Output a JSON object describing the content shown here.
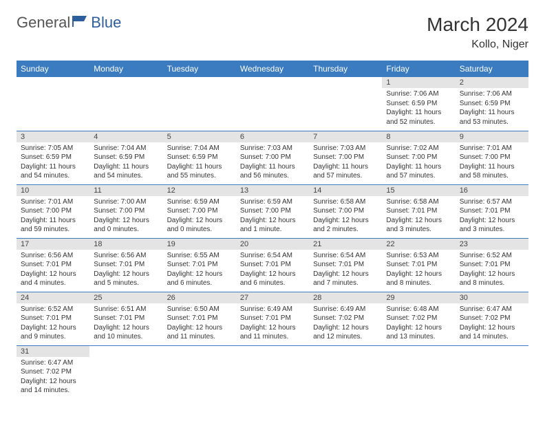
{
  "brand": {
    "text1": "General",
    "text2": "Blue"
  },
  "title": "March 2024",
  "location": "Kollo, Niger",
  "colors": {
    "header_bg": "#3b7bbf",
    "header_text": "#ffffff",
    "daynum_bg": "#e4e4e4",
    "row_border": "#3b7bbf",
    "brand_gray": "#555555",
    "brand_blue": "#2d5f9e"
  },
  "daysOfWeek": [
    "Sunday",
    "Monday",
    "Tuesday",
    "Wednesday",
    "Thursday",
    "Friday",
    "Saturday"
  ],
  "weeks": [
    [
      {
        "n": "",
        "sr": "",
        "ss": "",
        "dl": ""
      },
      {
        "n": "",
        "sr": "",
        "ss": "",
        "dl": ""
      },
      {
        "n": "",
        "sr": "",
        "ss": "",
        "dl": ""
      },
      {
        "n": "",
        "sr": "",
        "ss": "",
        "dl": ""
      },
      {
        "n": "",
        "sr": "",
        "ss": "",
        "dl": ""
      },
      {
        "n": "1",
        "sr": "Sunrise: 7:06 AM",
        "ss": "Sunset: 6:59 PM",
        "dl": "Daylight: 11 hours and 52 minutes."
      },
      {
        "n": "2",
        "sr": "Sunrise: 7:06 AM",
        "ss": "Sunset: 6:59 PM",
        "dl": "Daylight: 11 hours and 53 minutes."
      }
    ],
    [
      {
        "n": "3",
        "sr": "Sunrise: 7:05 AM",
        "ss": "Sunset: 6:59 PM",
        "dl": "Daylight: 11 hours and 54 minutes."
      },
      {
        "n": "4",
        "sr": "Sunrise: 7:04 AM",
        "ss": "Sunset: 6:59 PM",
        "dl": "Daylight: 11 hours and 54 minutes."
      },
      {
        "n": "5",
        "sr": "Sunrise: 7:04 AM",
        "ss": "Sunset: 6:59 PM",
        "dl": "Daylight: 11 hours and 55 minutes."
      },
      {
        "n": "6",
        "sr": "Sunrise: 7:03 AM",
        "ss": "Sunset: 7:00 PM",
        "dl": "Daylight: 11 hours and 56 minutes."
      },
      {
        "n": "7",
        "sr": "Sunrise: 7:03 AM",
        "ss": "Sunset: 7:00 PM",
        "dl": "Daylight: 11 hours and 57 minutes."
      },
      {
        "n": "8",
        "sr": "Sunrise: 7:02 AM",
        "ss": "Sunset: 7:00 PM",
        "dl": "Daylight: 11 hours and 57 minutes."
      },
      {
        "n": "9",
        "sr": "Sunrise: 7:01 AM",
        "ss": "Sunset: 7:00 PM",
        "dl": "Daylight: 11 hours and 58 minutes."
      }
    ],
    [
      {
        "n": "10",
        "sr": "Sunrise: 7:01 AM",
        "ss": "Sunset: 7:00 PM",
        "dl": "Daylight: 11 hours and 59 minutes."
      },
      {
        "n": "11",
        "sr": "Sunrise: 7:00 AM",
        "ss": "Sunset: 7:00 PM",
        "dl": "Daylight: 12 hours and 0 minutes."
      },
      {
        "n": "12",
        "sr": "Sunrise: 6:59 AM",
        "ss": "Sunset: 7:00 PM",
        "dl": "Daylight: 12 hours and 0 minutes."
      },
      {
        "n": "13",
        "sr": "Sunrise: 6:59 AM",
        "ss": "Sunset: 7:00 PM",
        "dl": "Daylight: 12 hours and 1 minute."
      },
      {
        "n": "14",
        "sr": "Sunrise: 6:58 AM",
        "ss": "Sunset: 7:00 PM",
        "dl": "Daylight: 12 hours and 2 minutes."
      },
      {
        "n": "15",
        "sr": "Sunrise: 6:58 AM",
        "ss": "Sunset: 7:01 PM",
        "dl": "Daylight: 12 hours and 3 minutes."
      },
      {
        "n": "16",
        "sr": "Sunrise: 6:57 AM",
        "ss": "Sunset: 7:01 PM",
        "dl": "Daylight: 12 hours and 3 minutes."
      }
    ],
    [
      {
        "n": "17",
        "sr": "Sunrise: 6:56 AM",
        "ss": "Sunset: 7:01 PM",
        "dl": "Daylight: 12 hours and 4 minutes."
      },
      {
        "n": "18",
        "sr": "Sunrise: 6:56 AM",
        "ss": "Sunset: 7:01 PM",
        "dl": "Daylight: 12 hours and 5 minutes."
      },
      {
        "n": "19",
        "sr": "Sunrise: 6:55 AM",
        "ss": "Sunset: 7:01 PM",
        "dl": "Daylight: 12 hours and 6 minutes."
      },
      {
        "n": "20",
        "sr": "Sunrise: 6:54 AM",
        "ss": "Sunset: 7:01 PM",
        "dl": "Daylight: 12 hours and 6 minutes."
      },
      {
        "n": "21",
        "sr": "Sunrise: 6:54 AM",
        "ss": "Sunset: 7:01 PM",
        "dl": "Daylight: 12 hours and 7 minutes."
      },
      {
        "n": "22",
        "sr": "Sunrise: 6:53 AM",
        "ss": "Sunset: 7:01 PM",
        "dl": "Daylight: 12 hours and 8 minutes."
      },
      {
        "n": "23",
        "sr": "Sunrise: 6:52 AM",
        "ss": "Sunset: 7:01 PM",
        "dl": "Daylight: 12 hours and 8 minutes."
      }
    ],
    [
      {
        "n": "24",
        "sr": "Sunrise: 6:52 AM",
        "ss": "Sunset: 7:01 PM",
        "dl": "Daylight: 12 hours and 9 minutes."
      },
      {
        "n": "25",
        "sr": "Sunrise: 6:51 AM",
        "ss": "Sunset: 7:01 PM",
        "dl": "Daylight: 12 hours and 10 minutes."
      },
      {
        "n": "26",
        "sr": "Sunrise: 6:50 AM",
        "ss": "Sunset: 7:01 PM",
        "dl": "Daylight: 12 hours and 11 minutes."
      },
      {
        "n": "27",
        "sr": "Sunrise: 6:49 AM",
        "ss": "Sunset: 7:01 PM",
        "dl": "Daylight: 12 hours and 11 minutes."
      },
      {
        "n": "28",
        "sr": "Sunrise: 6:49 AM",
        "ss": "Sunset: 7:02 PM",
        "dl": "Daylight: 12 hours and 12 minutes."
      },
      {
        "n": "29",
        "sr": "Sunrise: 6:48 AM",
        "ss": "Sunset: 7:02 PM",
        "dl": "Daylight: 12 hours and 13 minutes."
      },
      {
        "n": "30",
        "sr": "Sunrise: 6:47 AM",
        "ss": "Sunset: 7:02 PM",
        "dl": "Daylight: 12 hours and 14 minutes."
      }
    ],
    [
      {
        "n": "31",
        "sr": "Sunrise: 6:47 AM",
        "ss": "Sunset: 7:02 PM",
        "dl": "Daylight: 12 hours and 14 minutes."
      },
      {
        "n": "",
        "sr": "",
        "ss": "",
        "dl": ""
      },
      {
        "n": "",
        "sr": "",
        "ss": "",
        "dl": ""
      },
      {
        "n": "",
        "sr": "",
        "ss": "",
        "dl": ""
      },
      {
        "n": "",
        "sr": "",
        "ss": "",
        "dl": ""
      },
      {
        "n": "",
        "sr": "",
        "ss": "",
        "dl": ""
      },
      {
        "n": "",
        "sr": "",
        "ss": "",
        "dl": ""
      }
    ]
  ]
}
